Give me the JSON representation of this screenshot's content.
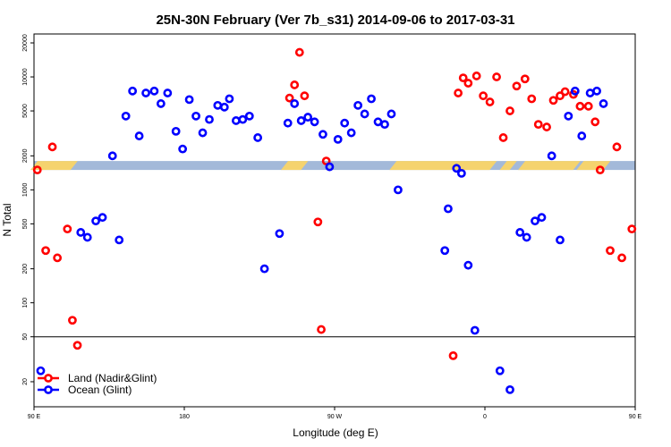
{
  "chart_data": {
    "type": "scatter",
    "title": "25N-30N February (Ver 7b_s31)   2014-09-06 to 2017-03-31",
    "xlabel": "Longitude (deg E)",
    "ylabel": "N Total",
    "y_scale": "log",
    "xlim": [
      90,
      450
    ],
    "ylim": [
      12,
      24000
    ],
    "x_ticks": [
      {
        "value": 90,
        "label": "90 E"
      },
      {
        "value": 180,
        "label": "180"
      },
      {
        "value": 270,
        "label": "90 W"
      },
      {
        "value": 360,
        "label": "0"
      },
      {
        "value": 450,
        "label": "90 E"
      },
      {
        "value": 540,
        "label": "180"
      }
    ],
    "y_ticks": [
      {
        "value": 20,
        "label": "20"
      },
      {
        "value": 50,
        "label": "50"
      },
      {
        "value": 100,
        "label": "100"
      },
      {
        "value": 200,
        "label": "200"
      },
      {
        "value": 500,
        "label": "500"
      },
      {
        "value": 1000,
        "label": "1000"
      },
      {
        "value": 2000,
        "label": "2000"
      },
      {
        "value": 5000,
        "label": "5000"
      },
      {
        "value": 10000,
        "label": "10000"
      },
      {
        "value": 20000,
        "label": "20000"
      }
    ],
    "reference_line": 50,
    "band": {
      "y_low": 1500,
      "y_high": 1800,
      "land_color": "#f5d36e",
      "ocean_color": "#a3b9d9"
    },
    "legend": {
      "position": "bottom-left",
      "entries": [
        {
          "label": "Land (Nadir&Glint)",
          "color": "#ff0000"
        },
        {
          "label": "Ocean (Glint)",
          "color": "#0000ff"
        }
      ]
    },
    "series": [
      {
        "name": "Land (Nadir&Glint)",
        "color": "#ff0000",
        "points": [
          [
            92,
            1500
          ],
          [
            97,
            290
          ],
          [
            101,
            2400
          ],
          [
            104,
            250
          ],
          [
            110,
            450
          ],
          [
            113,
            70
          ],
          [
            116,
            42
          ],
          [
            243,
            6500
          ],
          [
            246,
            8500
          ],
          [
            249,
            16500
          ],
          [
            252,
            6800
          ],
          [
            260,
            520
          ],
          [
            262,
            58
          ],
          [
            265,
            1800
          ],
          [
            341,
            34
          ],
          [
            344,
            7200
          ],
          [
            347,
            9800
          ],
          [
            350,
            8800
          ],
          [
            355,
            10200
          ],
          [
            359,
            6800
          ],
          [
            363,
            6000
          ],
          [
            367,
            10000
          ],
          [
            371,
            2900
          ],
          [
            375,
            5000
          ],
          [
            379,
            8300
          ],
          [
            384,
            9600
          ],
          [
            388,
            6400
          ],
          [
            392,
            3800
          ],
          [
            397,
            3600
          ],
          [
            401,
            6200
          ],
          [
            405,
            6800
          ],
          [
            408,
            7400
          ],
          [
            413,
            7000
          ],
          [
            417,
            5500
          ],
          [
            422,
            5500
          ],
          [
            426,
            4000
          ],
          [
            429,
            1500
          ],
          [
            435,
            290
          ],
          [
            439,
            2400
          ],
          [
            442,
            250
          ],
          [
            448,
            450
          ],
          [
            451,
            70
          ],
          [
            454,
            42
          ]
        ]
      },
      {
        "name": "Ocean (Glint)",
        "color": "#0000ff",
        "points": [
          [
            94,
            25
          ],
          [
            118,
            420
          ],
          [
            122,
            380
          ],
          [
            127,
            530
          ],
          [
            131,
            570
          ],
          [
            137,
            2000
          ],
          [
            141,
            360
          ],
          [
            145,
            4500
          ],
          [
            149,
            7500
          ],
          [
            153,
            3000
          ],
          [
            157,
            7200
          ],
          [
            162,
            7500
          ],
          [
            166,
            5800
          ],
          [
            170,
            7200
          ],
          [
            175,
            3300
          ],
          [
            179,
            2300
          ],
          [
            183,
            6300
          ],
          [
            187,
            4500
          ],
          [
            191,
            3200
          ],
          [
            195,
            4200
          ],
          [
            200,
            5600
          ],
          [
            204,
            5400
          ],
          [
            207,
            6400
          ],
          [
            211,
            4100
          ],
          [
            215,
            4200
          ],
          [
            219,
            4500
          ],
          [
            224,
            2900
          ],
          [
            228,
            200
          ],
          [
            237,
            410
          ],
          [
            242,
            3900
          ],
          [
            246,
            5800
          ],
          [
            250,
            4100
          ],
          [
            254,
            4400
          ],
          [
            258,
            4000
          ],
          [
            263,
            3100
          ],
          [
            267,
            1600
          ],
          [
            272,
            2800
          ],
          [
            276,
            3900
          ],
          [
            280,
            3200
          ],
          [
            284,
            5600
          ],
          [
            288,
            4700
          ],
          [
            292,
            6400
          ],
          [
            296,
            4000
          ],
          [
            300,
            3800
          ],
          [
            304,
            4700
          ],
          [
            308,
            1000
          ],
          [
            336,
            290
          ],
          [
            338,
            680
          ],
          [
            343,
            1550
          ],
          [
            346,
            1400
          ],
          [
            350,
            215
          ],
          [
            354,
            57
          ],
          [
            369,
            25
          ],
          [
            375,
            17
          ],
          [
            381,
            420
          ],
          [
            385,
            380
          ],
          [
            390,
            530
          ],
          [
            394,
            570
          ],
          [
            400,
            2000
          ],
          [
            405,
            360
          ],
          [
            410,
            4500
          ],
          [
            414,
            7500
          ],
          [
            418,
            3000
          ],
          [
            423,
            7200
          ],
          [
            427,
            7500
          ],
          [
            431,
            5800
          ]
        ]
      }
    ]
  }
}
